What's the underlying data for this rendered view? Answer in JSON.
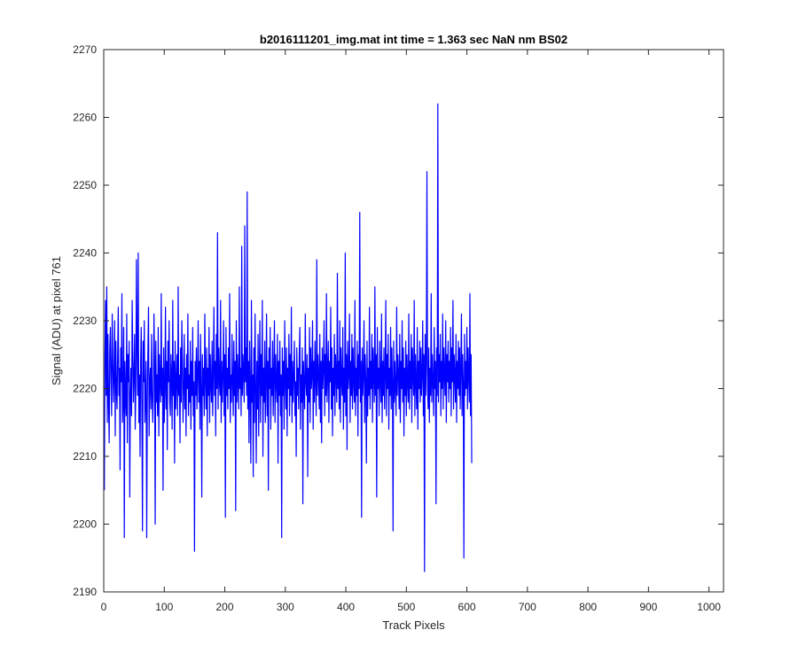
{
  "chart_data": {
    "type": "line",
    "title": "b2016111201_img.mat int time = 1.363 sec  NaN nm BS02",
    "xlabel": "Track Pixels",
    "ylabel": "Signal (ADU) at pixel 761",
    "xlim": [
      0,
      1024
    ],
    "ylim": [
      2190,
      2270
    ],
    "xticks": [
      0,
      100,
      200,
      300,
      400,
      500,
      600,
      700,
      800,
      900,
      1000
    ],
    "yticks": [
      2190,
      2200,
      2210,
      2220,
      2230,
      2240,
      2250,
      2260,
      2270
    ],
    "xtick_labels": [
      "0",
      "100",
      "200",
      "300",
      "400",
      "500",
      "600",
      "700",
      "800",
      "900",
      "1000"
    ],
    "ytick_labels": [
      "2190",
      "2200",
      "2210",
      "2220",
      "2230",
      "2240",
      "2250",
      "2260",
      "2270"
    ],
    "grid": false,
    "legend": "none",
    "line_color": "#0000ff",
    "series": [
      {
        "x_start": 1,
        "x_step": 1,
        "values": [
          2205,
          2225,
          2233,
          2219,
          2235,
          2215,
          2228,
          2218,
          2212,
          2226,
          2229,
          2221,
          2216,
          2231,
          2224,
          2218,
          2222,
          2230,
          2213,
          2227,
          2220,
          2217,
          2225,
          2232,
          2219,
          2223,
          2208,
          2226,
          2221,
          2234,
          2215,
          2218,
          2229,
          2198,
          2224,
          2219,
          2216,
          2231,
          2212,
          2225,
          2221,
          2227,
          2204,
          2219,
          2223,
          2216,
          2233,
          2225,
          2218,
          2222,
          2228,
          2214,
          2220,
          2239,
          2226,
          2219,
          2240,
          2215,
          2222,
          2210,
          2224,
          2229,
          2217,
          2199,
          2227,
          2221,
          2230,
          2215,
          2219,
          2224,
          2198,
          2218,
          2226,
          2232,
          2213,
          2221,
          2223,
          2217,
          2228,
          2219,
          2215,
          2220,
          2231,
          2224,
          2200,
          2227,
          2218,
          2222,
          2216,
          2229,
          2213,
          2225,
          2221,
          2218,
          2234,
          2219,
          2223,
          2205,
          2226,
          2215,
          2220,
          2232,
          2217,
          2224,
          2211,
          2227,
          2221,
          2230,
          2218,
          2216,
          2225,
          2222,
          2214,
          2233,
          2219,
          2224,
          2209,
          2227,
          2217,
          2221,
          2225,
          2216,
          2235,
          2219,
          2222,
          2212,
          2226,
          2218,
          2230,
          2224,
          2215,
          2220,
          2228,
          2217,
          2223,
          2213,
          2225,
          2220,
          2231,
          2216,
          2222,
          2218,
          2227,
          2214,
          2224,
          2219,
          2229,
          2216,
          2221,
          2196,
          2224,
          2219,
          2226,
          2217,
          2222,
          2230,
          2218,
          2224,
          2214,
          2228,
          2220,
          2204,
          2225,
          2219,
          2223,
          2216,
          2231,
          2221,
          2217,
          2226,
          2213,
          2223,
          2219,
          2229,
          2215,
          2225,
          2221,
          2218,
          2227,
          2216,
          2222,
          2232,
          2219,
          2224,
          2213,
          2228,
          2220,
          2243,
          2217,
          2226,
          2221,
          2219,
          2233,
          2215,
          2224,
          2218,
          2222,
          2230,
          2216,
          2225,
          2201,
          2229,
          2219,
          2223,
          2217,
          2226,
          2220,
          2234,
          2215,
          2222,
          2218,
          2228,
          2221,
          2216,
          2227,
          2219,
          2224,
          2202,
          2230,
          2218,
          2225,
          2221,
          2217,
          2235,
          2220,
          2223,
          2216,
          2241,
          2219,
          2225,
          2222,
          2218,
          2244,
          2221,
          2226,
          2219,
          2249,
          2217,
          2224,
          2212,
          2227,
          2220,
          2209,
          2233,
          2218,
          2222,
          2207,
          2226,
          2215,
          2231,
          2220,
          2209,
          2224,
          2217,
          2228,
          2213,
          2222,
          2230,
          2215,
          2225,
          2219,
          2233,
          2210,
          2223,
          2218,
          2227,
          2215,
          2221,
          2231,
          2216,
          2224,
          2205,
          2226,
          2220,
          2229,
          2214,
          2223,
          2219,
          2227,
          2216,
          2222,
          2230,
          2215,
          2225,
          2221,
          2218,
          2228,
          2209,
          2224,
          2219,
          2227,
          2216,
          2222,
          2198,
          2226,
          2219,
          2224,
          2214,
          2230,
          2221,
          2217,
          2226,
          2213,
          2223,
          2220,
          2228,
          2216,
          2225,
          2219,
          2232,
          2215,
          2224,
          2218,
          2222,
          2227,
          2216,
          2221,
          2210,
          2226,
          2219,
          2223,
          2217,
          2225,
          2229,
          2214,
          2222,
          2218,
          2226,
          2203,
          2224,
          2220,
          2217,
          2231,
          2221,
          2219,
          2225,
          2207,
          2223,
          2218,
          2229,
          2215,
          2226,
          2220,
          2222,
          2230,
          2214,
          2224,
          2218,
          2227,
          2221,
          2216,
          2239,
          2219,
          2225,
          2222,
          2217,
          2228,
          2215,
          2224,
          2212,
          2226,
          2220,
          2223,
          2230,
          2216,
          2225,
          2219,
          2234,
          2218,
          2222,
          2227,
          2215,
          2224,
          2221,
          2232,
          2217,
          2226,
          2213,
          2223,
          2219,
          2228,
          2216,
          2225,
          2222,
          2218,
          2237,
          2220,
          2224,
          2217,
          2230,
          2215,
          2226,
          2221,
          2219,
          2229,
          2214,
          2223,
          2218,
          2240,
          2216,
          2225,
          2211,
          2227,
          2220,
          2222,
          2231,
          2215,
          2224,
          2219,
          2228,
          2217,
          2226,
          2221,
          2218,
          2233,
          2216,
          2223,
          2219,
          2227,
          2213,
          2225,
          2220,
          2246,
          2218,
          2224,
          2201,
          2226,
          2219,
          2222,
          2230,
          2215,
          2225,
          2221,
          2209,
          2227,
          2216,
          2223,
          2219,
          2232,
          2217,
          2224,
          2220,
          2228,
          2215,
          2226,
          2222,
          2218,
          2235,
          2219,
          2225,
          2204,
          2229,
          2220,
          2223,
          2216,
          2227,
          2221,
          2218,
          2231,
          2215,
          2224,
          2219,
          2226,
          2217,
          2222,
          2233,
          2216,
          2225,
          2220,
          2228,
          2214,
          2223,
          2219,
          2229,
          2217,
          2226,
          2221,
          2199,
          2227,
          2218,
          2224,
          2220,
          2216,
          2232,
          2219,
          2225,
          2222,
          2217,
          2228,
          2215,
          2224,
          2220,
          2230,
          2218,
          2226,
          2213,
          2223,
          2219,
          2227,
          2216,
          2225,
          2221,
          2218,
          2231,
          2217,
          2224,
          2220,
          2228,
          2215,
          2226,
          2222,
          2219,
          2233,
          2216,
          2225,
          2221,
          2217,
          2229,
          2214,
          2224,
          2220,
          2227,
          2218,
          2226,
          2219,
          2222,
          2230,
          2216,
          2225,
          2193,
          2228,
          2219,
          2224,
          2252,
          2220,
          2217,
          2226,
          2215,
          2223,
          2219,
          2234,
          2218,
          2225,
          2221,
          2216,
          2229,
          2220,
          2224,
          2203,
          2226,
          2219,
          2262,
          2218,
          2225,
          2221,
          2228,
          2216,
          2224,
          2220,
          2231,
          2217,
          2226,
          2222,
          2219,
          2230,
          2215,
          2225,
          2221,
          2227,
          2218,
          2224,
          2220,
          2229,
          2216,
          2226,
          2221,
          2233,
          2217,
          2225,
          2222,
          2218,
          2228,
          2215,
          2224,
          2220,
          2227,
          2219,
          2226,
          2217,
          2223,
          2231,
          2216,
          2225,
          2221,
          2195,
          2228,
          2219,
          2224,
          2220,
          2229,
          2217,
          2226,
          2222,
          2218,
          2234,
          2216,
          2225,
          2209
        ]
      }
    ]
  }
}
